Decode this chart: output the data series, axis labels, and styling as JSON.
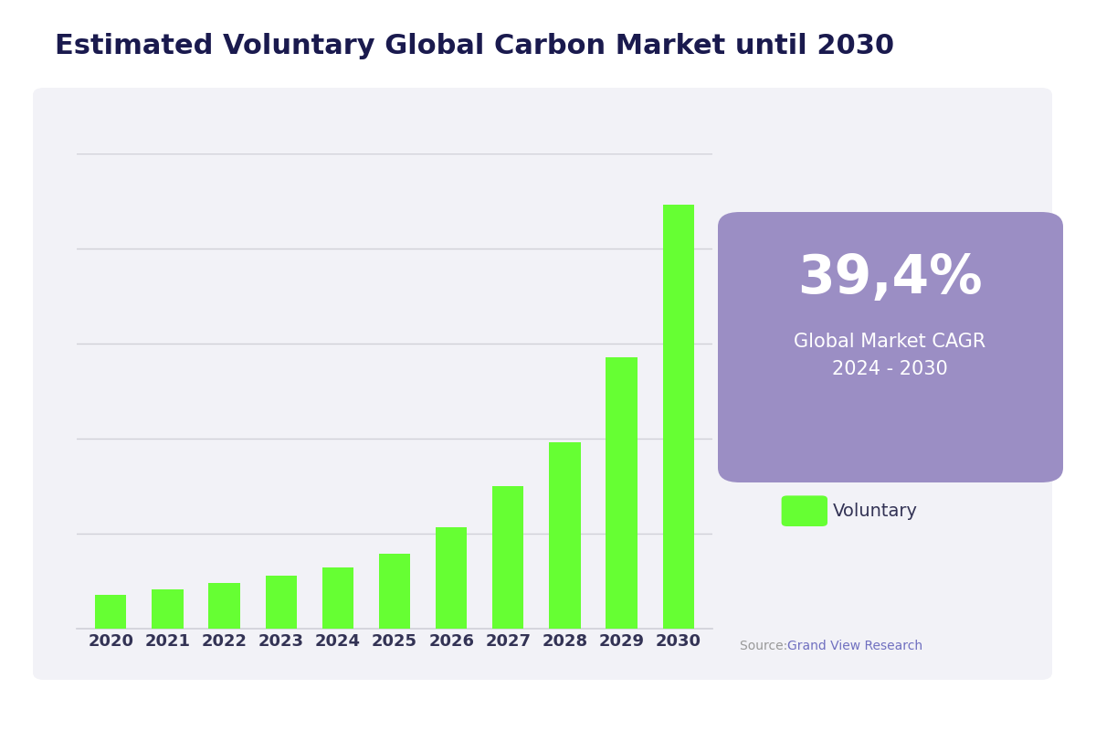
{
  "title": "Estimated Voluntary Global Carbon Market until 2030",
  "title_color": "#1a1a4e",
  "title_fontsize": 22,
  "title_fontweight": "bold",
  "years": [
    2020,
    2021,
    2022,
    2023,
    2024,
    2025,
    2026,
    2027,
    2028,
    2029,
    2030
  ],
  "values": [
    1.0,
    1.15,
    1.35,
    1.55,
    1.8,
    2.2,
    3.0,
    4.2,
    5.5,
    8.0,
    12.5
  ],
  "bar_color": "#66ff33",
  "chart_bg_color": "#f2f2f7",
  "page_bg_color": "#ffffff",
  "grid_color": "#d0d0d8",
  "axis_label_color": "#333355",
  "cagr_box_color": "#9b8ec4",
  "cagr_text_large": "39,4%",
  "cagr_text_small": "Global Market CAGR\n2024 - 2030",
  "legend_label": "Voluntary",
  "source_prefix": "Source: ",
  "source_link": "Grand View Research",
  "source_link_color": "#7070c0",
  "source_prefix_color": "#999999",
  "ylim": [
    0,
    14
  ]
}
